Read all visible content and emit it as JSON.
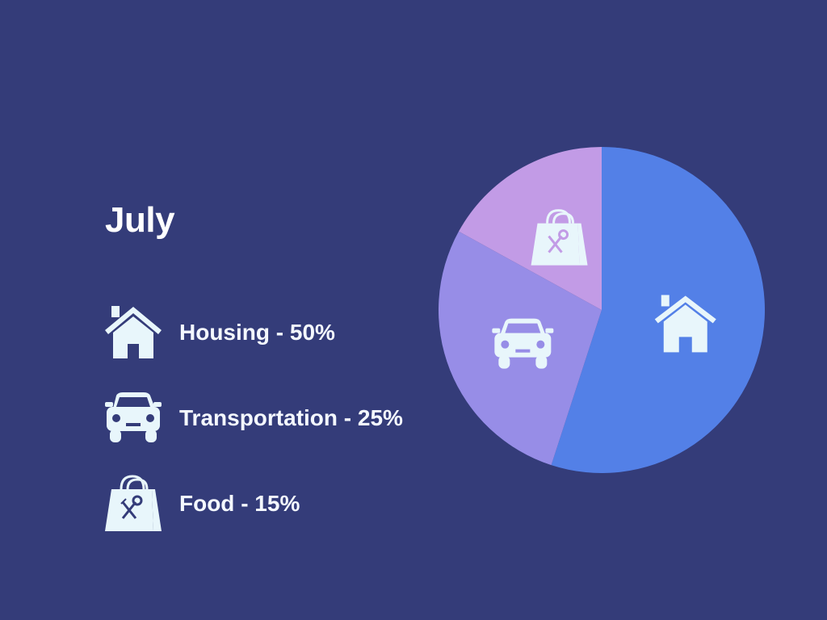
{
  "colors": {
    "background": "#343c79",
    "icon": "#e8f6fb",
    "text": "#f4f8ff"
  },
  "chart_data": {
    "type": "pie",
    "title": "July",
    "slices": [
      {
        "label": "Housing - 50%",
        "category": "Housing",
        "percent": 50,
        "display_share": 0.55,
        "color": "#5380e7",
        "icon": "house-icon"
      },
      {
        "label": "Transportation - 25%",
        "category": "Transportation",
        "percent": 25,
        "display_share": 0.28,
        "color": "#978de7",
        "icon": "car-icon"
      },
      {
        "label": "Food - 15%",
        "category": "Food",
        "percent": 15,
        "display_share": 0.17,
        "color": "#c29be6",
        "icon": "food-bag-icon"
      }
    ],
    "start_angle_deg": 0,
    "direction": "clockwise",
    "legend_position": "left"
  }
}
